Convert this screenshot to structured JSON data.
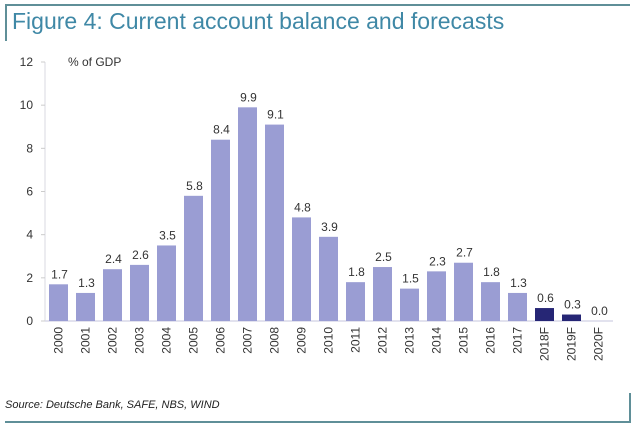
{
  "colors": {
    "actual_bar": "#9a9dd3",
    "forecast_bar": "#262675",
    "title": "#3f88a6",
    "frame": "#5f8f98"
  },
  "source": "Source: Deutsche Bank, SAFE, NBS, WIND",
  "chart_data": {
    "type": "bar",
    "title": "Figure 4: Current account balance and forecasts",
    "xlabel": "",
    "ylabel": "% of GDP",
    "ylim": [
      0,
      12
    ],
    "yticks": [
      0,
      2,
      4,
      6,
      8,
      10,
      12
    ],
    "grid": false,
    "legend": "none",
    "categories": [
      "2000",
      "2001",
      "2002",
      "2003",
      "2004",
      "2005",
      "2006",
      "2007",
      "2008",
      "2009",
      "2010",
      "2011",
      "2012",
      "2013",
      "2014",
      "2015",
      "2016",
      "2017",
      "2018F",
      "2019F",
      "2020F"
    ],
    "values": [
      1.7,
      1.3,
      2.4,
      2.6,
      3.5,
      5.8,
      8.4,
      9.9,
      9.1,
      4.8,
      3.9,
      1.8,
      2.5,
      1.5,
      2.3,
      2.7,
      1.8,
      1.3,
      0.6,
      0.3,
      0.0
    ],
    "data_labels": [
      "1.7",
      "1.3",
      "2.4",
      "2.6",
      "3.5",
      "5.8",
      "8.4",
      "9.9",
      "9.1",
      "4.8",
      "3.9",
      "1.8",
      "2.5",
      "1.5",
      "2.3",
      "2.7",
      "1.8",
      "1.3",
      "0.6",
      "0.3",
      "0.0"
    ],
    "forecast": [
      false,
      false,
      false,
      false,
      false,
      false,
      false,
      false,
      false,
      false,
      false,
      false,
      false,
      false,
      false,
      false,
      false,
      false,
      true,
      true,
      true
    ]
  }
}
